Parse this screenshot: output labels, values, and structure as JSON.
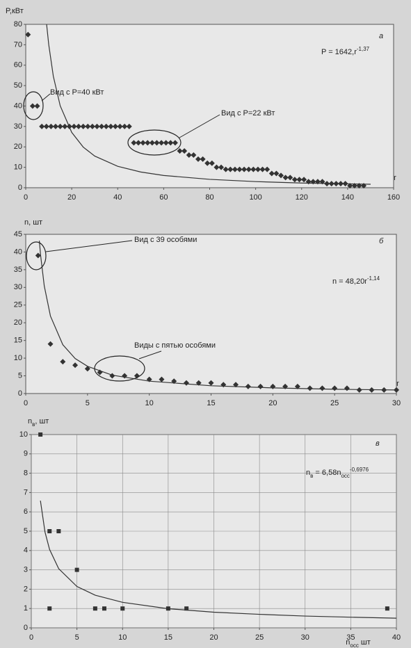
{
  "chart_data": [
    {
      "type": "scatter",
      "panel_label": "а",
      "ylabel": [
        {
          "text": "P,кВт"
        }
      ],
      "xlabel": [
        {
          "text": "r"
        }
      ],
      "equation": [
        {
          "text": "P = 1642,r"
        },
        {
          "text": "-1,37",
          "style": "sup"
        }
      ],
      "annotations": [
        "Вид с Р=40 кВт",
        "Вид с Р=22 кВт"
      ],
      "xlim": [
        0,
        160
      ],
      "xticks": [
        0,
        20,
        40,
        60,
        80,
        100,
        120,
        140,
        160
      ],
      "ylim": [
        0,
        80
      ],
      "yticks": [
        0,
        10,
        20,
        30,
        40,
        50,
        60,
        70,
        80
      ],
      "grid": false,
      "series": [
        {
          "kind": "scatter",
          "marker": "diamond",
          "color": "#333333",
          "x": [
            1,
            3,
            5,
            7,
            9,
            11,
            13,
            15,
            17,
            19,
            21,
            23,
            25,
            27,
            29,
            31,
            33,
            35,
            37,
            39,
            41,
            43,
            45,
            47,
            49,
            51,
            53,
            55,
            57,
            59,
            61,
            63,
            65,
            67,
            69,
            71,
            73,
            75,
            77,
            79,
            81,
            83,
            85,
            87,
            89,
            91,
            93,
            95,
            97,
            99,
            101,
            103,
            105,
            107,
            109,
            111,
            113,
            115,
            117,
            119,
            121,
            123,
            125,
            127,
            129,
            131,
            133,
            135,
            137,
            139,
            141,
            143,
            145,
            147
          ],
          "values": [
            75,
            40,
            40,
            30,
            30,
            30,
            30,
            30,
            30,
            30,
            30,
            30,
            30,
            30,
            30,
            30,
            30,
            30,
            30,
            30,
            30,
            30,
            30,
            22,
            22,
            22,
            22,
            22,
            22,
            22,
            22,
            22,
            22,
            18,
            18,
            16,
            16,
            14,
            14,
            12,
            12,
            10,
            10,
            9,
            9,
            9,
            9,
            9,
            9,
            9,
            9,
            9,
            9,
            7,
            7,
            6,
            5,
            5,
            4,
            4,
            4,
            3,
            3,
            3,
            3,
            2,
            2,
            2,
            2,
            2,
            1,
            1,
            1,
            1
          ]
        },
        {
          "kind": "line",
          "color": "#333333",
          "x": [
            9,
            10,
            12,
            15,
            20,
            25,
            30,
            40,
            50,
            60,
            80,
            100,
            120,
            150
          ],
          "values": [
            80.9,
            70.1,
            54.6,
            40.1,
            27.1,
            19.9,
            15.5,
            10.5,
            7.7,
            6.0,
            4.1,
            3.0,
            2.3,
            1.7
          ]
        }
      ]
    },
    {
      "type": "scatter",
      "panel_label": "б",
      "ylabel": [
        {
          "text": "n, шт"
        }
      ],
      "xlabel": [
        {
          "text": "r"
        }
      ],
      "equation": [
        {
          "text": "n = 48,20r"
        },
        {
          "text": "-1,14",
          "style": "sup"
        }
      ],
      "annotations": [
        "Вид с 39 особями",
        "Виды с пятью особями"
      ],
      "xlim": [
        0,
        30
      ],
      "xticks": [
        0,
        5,
        10,
        15,
        20,
        25,
        30
      ],
      "ylim": [
        0,
        45
      ],
      "yticks": [
        0,
        5,
        10,
        15,
        20,
        25,
        30,
        35,
        40,
        45
      ],
      "grid": false,
      "series": [
        {
          "kind": "scatter",
          "marker": "diamond",
          "color": "#333333",
          "x": [
            1,
            2,
            3,
            4,
            5,
            6,
            7,
            8,
            9,
            10,
            11,
            12,
            13,
            14,
            15,
            16,
            17,
            18,
            19,
            20,
            21,
            22,
            23,
            24,
            25,
            26,
            27,
            28,
            29,
            30
          ],
          "values": [
            39,
            14,
            9,
            8,
            7,
            6,
            5,
            5,
            5,
            4,
            4,
            3.5,
            3,
            3,
            3,
            2.5,
            2.5,
            2,
            2,
            2,
            2,
            2,
            1.5,
            1.5,
            1.5,
            1.5,
            1,
            1,
            1,
            1
          ]
        },
        {
          "kind": "line",
          "color": "#333333",
          "x": [
            1.1,
            1.2,
            1.5,
            2,
            3,
            4,
            5,
            7,
            10,
            15,
            20,
            25,
            30
          ],
          "values": [
            43.2,
            39.2,
            30.4,
            21.9,
            13.8,
            9.9,
            7.7,
            5.2,
            3.5,
            2.2,
            1.6,
            1.2,
            1.0
          ]
        }
      ]
    },
    {
      "type": "scatter",
      "panel_label": "в",
      "ylabel": [
        {
          "text": "n"
        },
        {
          "text": "в",
          "style": "sub"
        },
        {
          "text": ", шт"
        }
      ],
      "xlabel": [
        {
          "text": "n"
        },
        {
          "text": "осс",
          "style": "sub"
        },
        {
          "text": " шт"
        }
      ],
      "equation": [
        {
          "text": "n"
        },
        {
          "text": "в",
          "style": "sub"
        },
        {
          "text": " = 6,58n"
        },
        {
          "text": "осс",
          "style": "sub"
        },
        {
          "text": "-0,6976",
          "style": "sup"
        }
      ],
      "annotations": [],
      "xlim": [
        0,
        40
      ],
      "xticks": [
        0,
        5,
        10,
        15,
        20,
        25,
        30,
        35,
        40
      ],
      "ylim": [
        0,
        10
      ],
      "yticks": [
        0,
        1,
        2,
        3,
        4,
        5,
        6,
        7,
        8,
        9,
        10
      ],
      "grid": true,
      "series": [
        {
          "kind": "scatter",
          "marker": "square",
          "color": "#333333",
          "x": [
            1,
            2,
            3,
            5,
            2,
            7,
            8,
            10,
            15,
            17,
            39
          ],
          "values": [
            10,
            5,
            5,
            3,
            1,
            1,
            1,
            1,
            1,
            1,
            1
          ]
        },
        {
          "kind": "line",
          "color": "#333333",
          "x": [
            1,
            1.5,
            2,
            3,
            5,
            7,
            10,
            15,
            20,
            25,
            30,
            35,
            40
          ],
          "values": [
            6.58,
            4.96,
            4.06,
            3.06,
            2.14,
            1.69,
            1.32,
            0.99,
            0.81,
            0.7,
            0.61,
            0.55,
            0.5
          ]
        }
      ]
    }
  ]
}
